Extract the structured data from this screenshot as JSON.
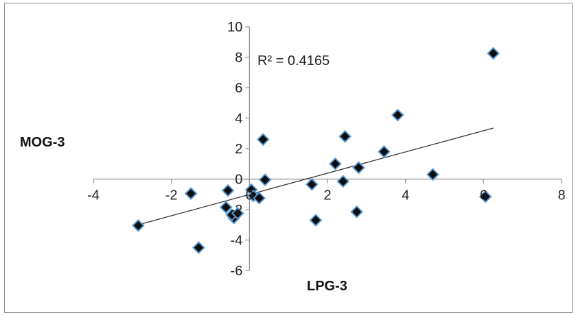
{
  "chart_data": {
    "type": "scatter",
    "xlabel": "LPG-3",
    "ylabel": "MOG-3",
    "xlim": [
      -4,
      8
    ],
    "ylim": [
      -6,
      10
    ],
    "xticks": [
      -4,
      -2,
      0,
      2,
      4,
      6,
      8
    ],
    "yticks": [
      -6,
      -4,
      -2,
      0,
      2,
      4,
      6,
      8,
      10
    ],
    "grid": false,
    "legend": "none",
    "annotation": "R² = 0.4165",
    "marker": "diamond",
    "marker_color": "#0d0d0d",
    "marker_edge_color": "#5b9bd5",
    "trendline": {
      "type": "linear",
      "x_range": [
        -2.85,
        6.25
      ],
      "y_range": [
        -3.0,
        3.35
      ],
      "color": "#333333"
    },
    "series": [
      {
        "points": [
          [
            -2.85,
            -3.05
          ],
          [
            -1.5,
            -0.95
          ],
          [
            -1.3,
            -4.5
          ],
          [
            -0.55,
            -0.75
          ],
          [
            -0.6,
            -1.85
          ],
          [
            -0.4,
            -2.55
          ],
          [
            -0.45,
            -2.35
          ],
          [
            -0.3,
            -2.25
          ],
          [
            0.05,
            -0.7
          ],
          [
            0.1,
            -1.1
          ],
          [
            0.25,
            -1.25
          ],
          [
            0.35,
            2.6
          ],
          [
            0.4,
            -0.05
          ],
          [
            1.6,
            -0.35
          ],
          [
            1.7,
            -2.7
          ],
          [
            2.2,
            1.0
          ],
          [
            2.45,
            2.8
          ],
          [
            2.4,
            -0.15
          ],
          [
            2.75,
            -2.15
          ],
          [
            2.8,
            0.75
          ],
          [
            3.45,
            1.8
          ],
          [
            3.8,
            4.2
          ],
          [
            4.7,
            0.3
          ],
          [
            6.05,
            -1.15
          ],
          [
            6.25,
            8.25
          ]
        ]
      }
    ]
  }
}
